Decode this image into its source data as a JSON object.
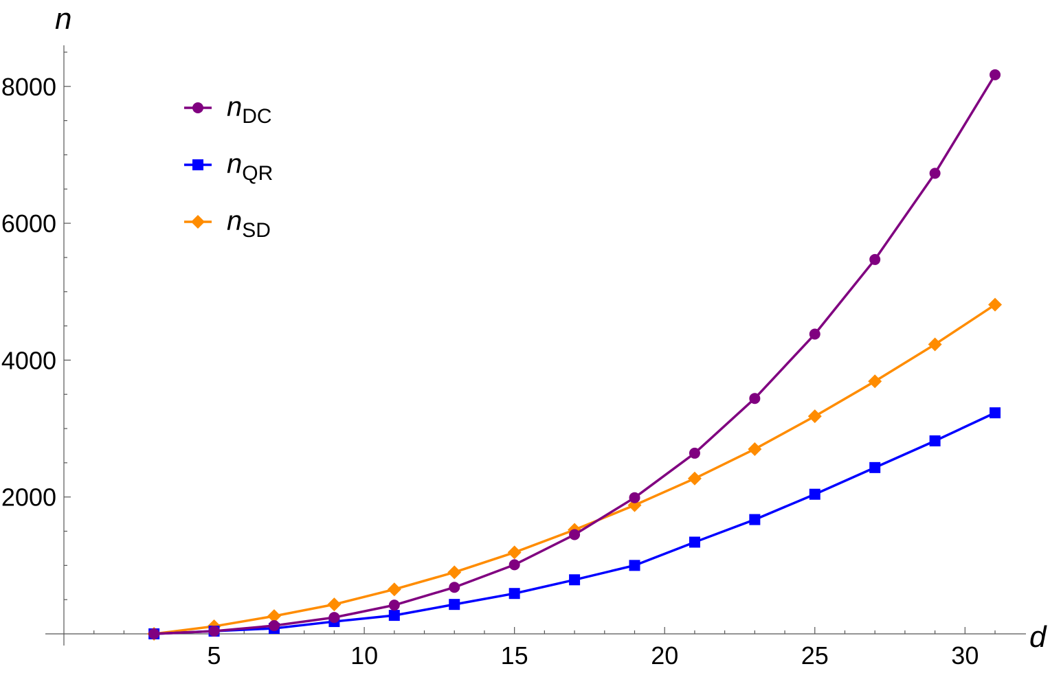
{
  "chart_data": {
    "type": "line",
    "xlabel": "d",
    "ylabel": "n",
    "xlim": [
      0,
      31.8
    ],
    "ylim": [
      0,
      8600
    ],
    "x_ticks": [
      5,
      10,
      15,
      20,
      25,
      30
    ],
    "y_ticks": [
      2000,
      4000,
      6000,
      8000
    ],
    "legend_position": "top-left",
    "x": [
      3,
      5,
      7,
      9,
      11,
      13,
      15,
      17,
      19,
      21,
      23,
      25,
      27,
      29,
      31
    ],
    "series": [
      {
        "name": "n",
        "subscript": "DC",
        "color": "#800080",
        "marker": "circle",
        "values": [
          0,
          40,
          120,
          240,
          420,
          680,
          1010,
          1450,
          1990,
          2640,
          3440,
          4380,
          5470,
          6730,
          8170
        ]
      },
      {
        "name": "n",
        "subscript": "QR",
        "color": "#0000ff",
        "marker": "square",
        "values": [
          0,
          40,
          80,
          180,
          270,
          430,
          590,
          790,
          1000,
          1340,
          1670,
          2040,
          2430,
          2820,
          3230
        ]
      },
      {
        "name": "n",
        "subscript": "SD",
        "color": "#ff8c00",
        "marker": "diamond",
        "values": [
          0,
          110,
          260,
          430,
          650,
          900,
          1190,
          1520,
          1880,
          2270,
          2700,
          3180,
          3690,
          4230,
          4810
        ]
      }
    ]
  }
}
